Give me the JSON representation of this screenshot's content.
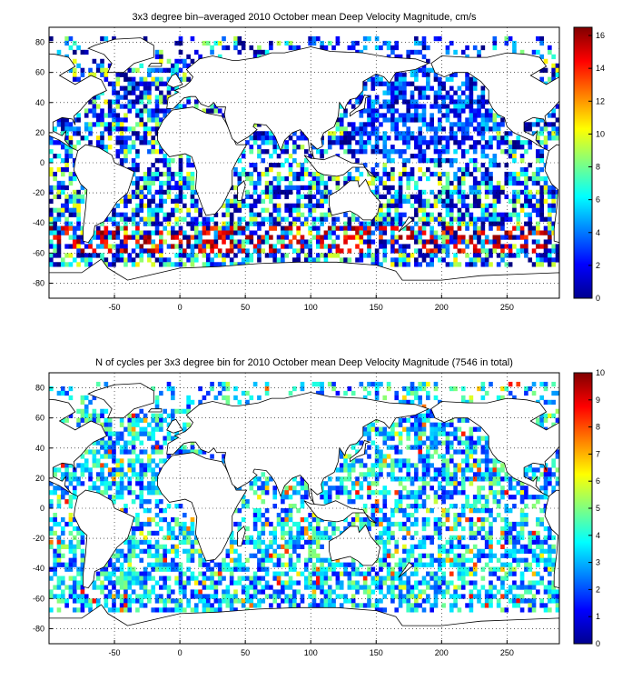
{
  "colors": {
    "jet": [
      "#00008f",
      "#0000ff",
      "#0080ff",
      "#00ffff",
      "#80ff80",
      "#ffff00",
      "#ff8000",
      "#ff0000",
      "#800000"
    ],
    "coast": "#000000",
    "grid": "#000000"
  },
  "chart_data": [
    {
      "type": "heatmap",
      "title": "3x3 degree bin–averaged 2010 October mean Deep Velocity Magnitude, cm/s",
      "xlabel": "",
      "ylabel": "",
      "xlim": [
        -100,
        290
      ],
      "ylim": [
        -90,
        90
      ],
      "xticks": [
        -50,
        0,
        50,
        100,
        150,
        200,
        250
      ],
      "yticks": [
        80,
        60,
        40,
        20,
        0,
        -20,
        -40,
        -60,
        -80
      ],
      "grid": true,
      "bin_size_deg": 3,
      "colorbar": {
        "min": 0,
        "max": 16.5,
        "ticks": [
          16,
          14,
          12,
          10,
          8,
          6,
          4,
          2,
          0
        ]
      },
      "colormap": "jet"
    },
    {
      "type": "heatmap",
      "title": "N of cycles per 3x3 degree bin for 2010 October mean Deep Velocity Magnitude (7546 in total)",
      "xlabel": "",
      "ylabel": "",
      "xlim": [
        -100,
        290
      ],
      "ylim": [
        -90,
        90
      ],
      "xticks": [
        -50,
        0,
        50,
        100,
        150,
        200,
        250
      ],
      "yticks": [
        80,
        60,
        40,
        20,
        0,
        -20,
        -40,
        -60,
        -80
      ],
      "grid": true,
      "bin_size_deg": 3,
      "colorbar": {
        "min": 0,
        "max": 10,
        "ticks": [
          10,
          9,
          8,
          7,
          6,
          5,
          4,
          3,
          2,
          1,
          0
        ]
      },
      "colormap": "jet"
    }
  ]
}
